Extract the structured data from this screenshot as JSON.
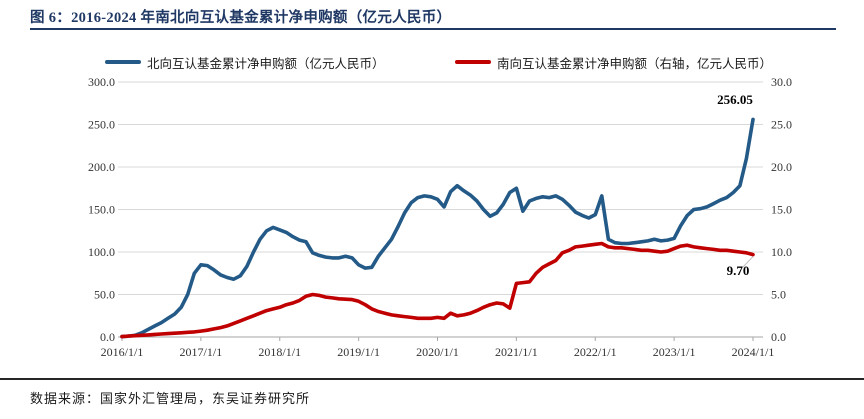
{
  "header": {
    "title": "图 6：2016-2024 年南北向互认基金累计净申购额（亿元人民币）"
  },
  "footer": {
    "source": "数据来源：国家外汇管理局，东吴证券研究所"
  },
  "colors": {
    "north_line": "#245a87",
    "south_line": "#c00000",
    "title_navy": "#1f3864",
    "gridline": "#d9d9d9",
    "axis_line": "#a6a6a6",
    "annotation_text": "#000000"
  },
  "chart_data": {
    "type": "line",
    "grid": true,
    "legend_position": "top",
    "x_frequency": "monthly",
    "x_start": "2016/1/1",
    "x_end": "2024/1/1",
    "x_tick_labels": [
      "2016/1/1",
      "2017/1/1",
      "2018/1/1",
      "2019/1/1",
      "2020/1/1",
      "2021/1/1",
      "2022/1/1",
      "2023/1/1",
      "2024/1/1"
    ],
    "axes": {
      "left": {
        "min": 0,
        "max": 300,
        "tick_labels": [
          "0.0",
          "50.0",
          "100.0",
          "150.0",
          "200.0",
          "250.0",
          "300.0"
        ]
      },
      "right": {
        "min": 0,
        "max": 30,
        "tick_labels": [
          "0.0",
          "5.0",
          "10.0",
          "15.0",
          "20.0",
          "25.0",
          "30.0"
        ]
      }
    },
    "series": [
      {
        "name": "北向互认基金累计净申购额（亿元人民币）",
        "axis": "left",
        "color": "#245a87",
        "end_label": "256.05",
        "values": [
          0.5,
          1,
          2,
          5,
          9,
          13,
          17,
          22,
          27,
          35,
          50,
          75,
          85,
          84,
          79,
          73,
          70,
          68,
          72,
          83,
          100,
          115,
          125,
          129,
          126,
          123,
          118,
          114,
          112,
          99,
          96,
          94,
          93,
          93,
          95,
          93,
          85,
          81,
          82,
          95,
          105,
          115,
          130,
          146,
          158,
          164,
          166,
          165,
          162,
          153,
          171,
          178,
          172,
          167,
          160,
          150,
          142,
          146,
          156,
          170,
          175,
          148,
          160,
          163,
          165,
          164,
          166,
          162,
          155,
          147,
          143,
          140,
          144,
          166,
          115,
          111,
          110,
          110,
          111,
          112,
          113,
          115,
          113,
          114,
          116,
          131,
          143,
          150,
          151,
          153,
          157,
          161,
          164,
          170,
          178,
          210,
          256.05
        ]
      },
      {
        "name": "南向互认基金累计净申购额（右轴，亿元人民币）",
        "axis": "right",
        "color": "#c00000",
        "end_label": "9.70",
        "values": [
          0.05,
          0.1,
          0.15,
          0.2,
          0.25,
          0.3,
          0.35,
          0.4,
          0.45,
          0.5,
          0.55,
          0.6,
          0.7,
          0.8,
          0.95,
          1.1,
          1.3,
          1.6,
          1.9,
          2.2,
          2.5,
          2.8,
          3.1,
          3.3,
          3.5,
          3.8,
          4.0,
          4.3,
          4.8,
          5.0,
          4.9,
          4.7,
          4.6,
          4.5,
          4.45,
          4.4,
          4.2,
          3.8,
          3.3,
          3.0,
          2.8,
          2.6,
          2.5,
          2.4,
          2.3,
          2.2,
          2.2,
          2.2,
          2.3,
          2.2,
          2.8,
          2.5,
          2.6,
          2.8,
          3.1,
          3.5,
          3.8,
          4.0,
          3.9,
          3.4,
          6.3,
          6.4,
          6.5,
          7.5,
          8.2,
          8.6,
          9.0,
          9.9,
          10.2,
          10.6,
          10.7,
          10.8,
          10.9,
          11.0,
          10.6,
          10.5,
          10.5,
          10.4,
          10.3,
          10.2,
          10.2,
          10.1,
          10.0,
          10.1,
          10.4,
          10.7,
          10.8,
          10.6,
          10.5,
          10.4,
          10.3,
          10.2,
          10.2,
          10.1,
          10.0,
          9.9,
          9.7
        ]
      }
    ]
  }
}
